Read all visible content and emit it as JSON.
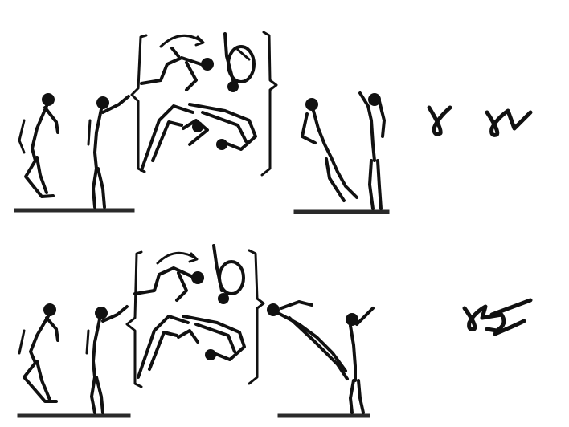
{
  "diagram": {
    "background": "#ffffff",
    "ink_color": "#111111",
    "rows": [
      {
        "id": "row-1",
        "phases": [
          "stand",
          "arms-up",
          "tuck-rotation",
          "landing",
          "finish"
        ],
        "notation_symbols": [
          "gamma-loop",
          "gamma-loop-check"
        ]
      },
      {
        "id": "row-2",
        "phases": [
          "stand",
          "arms-up",
          "tuck-rotation",
          "layout-landing",
          "finish"
        ],
        "notation_symbols": [
          "gamma-loop-crossed"
        ]
      }
    ]
  }
}
